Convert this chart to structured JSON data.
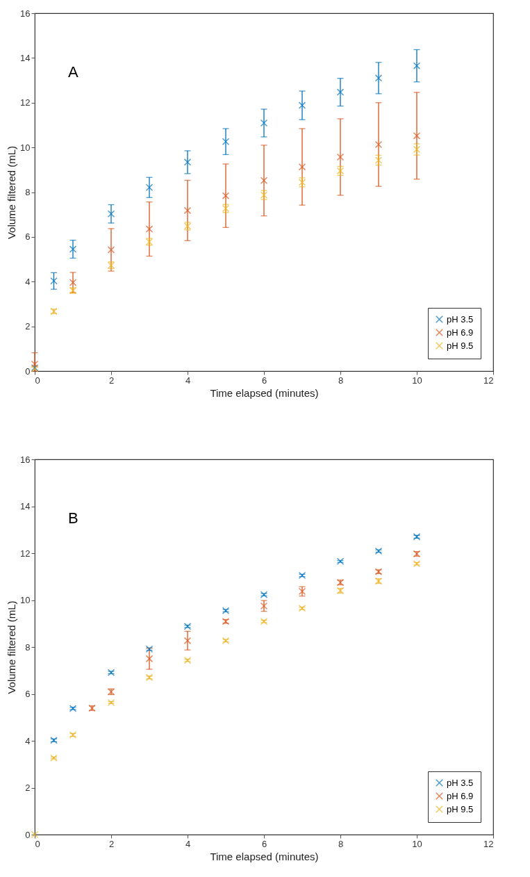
{
  "chart_data": [
    {
      "type": "scatter",
      "title": "A",
      "xlabel": "Time elapsed (minutes)",
      "ylabel": "Volume filtered (mL)",
      "xlim": [
        0,
        12
      ],
      "xticks": [
        0,
        2,
        4,
        6,
        8,
        10,
        12
      ],
      "ylim": [
        0,
        16
      ],
      "yticks": [
        0,
        2,
        4,
        6,
        8,
        10,
        12,
        14,
        16
      ],
      "legend": "bottom right",
      "marker": "cross",
      "series": [
        {
          "name": "pH 3.5",
          "color": "#0072bd",
          "x": [
            0,
            0.5,
            1,
            2,
            3,
            4,
            5,
            6,
            7,
            8,
            9,
            10
          ],
          "values": [
            0.15,
            4.03,
            5.45,
            7.03,
            8.21,
            9.34,
            10.26,
            11.09,
            11.88,
            12.47,
            13.1,
            13.65
          ],
          "errors": [
            null,
            0.37,
            0.4,
            0.41,
            0.45,
            0.51,
            0.58,
            0.62,
            0.64,
            0.62,
            0.7,
            0.72
          ]
        },
        {
          "name": "pH 6.9",
          "color": "#d95319",
          "x": [
            0,
            1,
            2,
            3,
            4,
            5,
            6,
            7,
            8,
            9,
            10
          ],
          "values": [
            0.31,
            3.96,
            5.42,
            6.35,
            7.18,
            7.84,
            8.52,
            9.13,
            9.57,
            10.13,
            10.52
          ],
          "errors": [
            [
              0,
              0.82
            ],
            0.45,
            0.95,
            1.21,
            1.35,
            1.42,
            1.58,
            1.71,
            1.71,
            1.87,
            1.94
          ]
        },
        {
          "name": "pH 9.5",
          "color": "#edb120",
          "x": [
            0,
            0.5,
            1,
            2,
            3,
            4,
            5,
            6,
            7,
            8,
            9,
            10
          ],
          "values": [
            0.1,
            2.67,
            3.6,
            4.73,
            5.78,
            6.48,
            7.27,
            7.87,
            8.44,
            8.95,
            9.43,
            9.91
          ],
          "errors": [
            null,
            0.1,
            0.12,
            0.15,
            0.15,
            0.17,
            0.18,
            0.2,
            0.2,
            0.2,
            0.22,
            0.25
          ]
        }
      ]
    },
    {
      "type": "scatter",
      "title": "B",
      "xlabel": "Time elapsed (minutes)",
      "ylabel": "Volume filtered (mL)",
      "xlim": [
        0,
        12
      ],
      "xticks": [
        0,
        2,
        4,
        6,
        8,
        10,
        12
      ],
      "ylim": [
        0,
        16
      ],
      "yticks": [
        0,
        2,
        4,
        6,
        8,
        10,
        12,
        14,
        16
      ],
      "legend": "bottom right",
      "marker": "cross",
      "series": [
        {
          "name": "pH 3.5",
          "color": "#0072bd",
          "x": [
            0.5,
            1,
            2,
            3,
            4,
            5,
            6,
            7,
            8,
            9,
            10
          ],
          "values": [
            4.02,
            5.38,
            6.91,
            7.91,
            8.88,
            9.55,
            10.23,
            11.05,
            11.65,
            12.09,
            12.7
          ],
          "errors": [
            0.06,
            0.05,
            0.05,
            0.05,
            0.05,
            0.05,
            0.05,
            0.05,
            0.04,
            0.05,
            0.06
          ]
        },
        {
          "name": "pH 6.9",
          "color": "#d95319",
          "x": [
            1.5,
            2,
            3,
            4,
            5,
            6,
            7,
            8,
            9,
            10
          ],
          "values": [
            5.39,
            6.09,
            7.5,
            8.27,
            9.09,
            9.75,
            10.37,
            10.75,
            11.21,
            11.97
          ],
          "errors": [
            0.1,
            0.12,
            0.45,
            0.4,
            0.08,
            0.23,
            0.2,
            0.1,
            0.08,
            0.1
          ]
        },
        {
          "name": "pH 9.5",
          "color": "#edb120",
          "x": [
            0,
            0.5,
            1,
            2,
            3,
            4,
            5,
            6,
            7,
            8,
            9,
            10
          ],
          "values": [
            0,
            3.27,
            4.25,
            5.63,
            6.7,
            7.43,
            8.27,
            9.09,
            9.65,
            10.4,
            10.81,
            11.55
          ],
          "errors": [
            null,
            0.04,
            0.06,
            0.04,
            0.06,
            0.05,
            0.05,
            0.05,
            0.05,
            0.1,
            0.1,
            0.05
          ]
        }
      ]
    }
  ]
}
